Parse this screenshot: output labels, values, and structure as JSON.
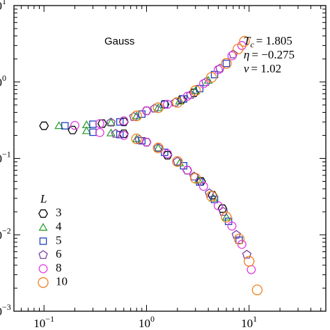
{
  "chart_data": {
    "type": "scatter",
    "log_x": true,
    "log_y": true,
    "xlim": [
      0.0509,
      56
    ],
    "ylim": [
      0.001,
      10
    ],
    "xticks": [
      {
        "value": 0.1,
        "label": "10",
        "exponent": "−1"
      },
      {
        "value": 1,
        "label": "10",
        "exponent": "0"
      },
      {
        "value": 10,
        "label": "10",
        "exponent": "1"
      }
    ],
    "yticks": [
      {
        "value": 0.001,
        "label": "10",
        "exponent": "−3"
      },
      {
        "value": 0.01,
        "label": "10",
        "exponent": "−2"
      },
      {
        "value": 0.1,
        "label": "10",
        "exponent": "−1"
      },
      {
        "value": 1,
        "label": "10",
        "exponent": "0"
      },
      {
        "value": 10,
        "label": "10",
        "exponent": "1"
      }
    ],
    "xminorticks": [
      0.06,
      0.07,
      0.08,
      0.09,
      0.2,
      0.3,
      0.4,
      0.5,
      0.6,
      0.7,
      0.8,
      0.9,
      2,
      3,
      4,
      5,
      6,
      7,
      8,
      9,
      20,
      30,
      40,
      50
    ],
    "yminorticks": [
      0.002,
      0.003,
      0.004,
      0.005,
      0.006,
      0.007,
      0.008,
      0.009,
      0.02,
      0.03,
      0.04,
      0.05,
      0.06,
      0.07,
      0.08,
      0.09,
      0.2,
      0.3,
      0.4,
      0.5,
      0.6,
      0.7,
      0.8,
      0.9,
      2,
      3,
      4,
      5,
      6,
      7,
      8,
      9
    ],
    "annotation": "Gauss",
    "parameters": [
      {
        "symbol": "T",
        "sub": "c",
        "text": "= 1.805"
      },
      {
        "symbol": "η",
        "text": "= −0.275"
      },
      {
        "symbol": "ν",
        "text": "= 1.02"
      }
    ],
    "legend_title": "L",
    "legend_position": "lower left",
    "series": [
      {
        "name": "3",
        "color": "#000000",
        "marker": "hexagon",
        "x": [
          0.1,
          0.37,
          0.6,
          1.0,
          1.5,
          2.2,
          2.9,
          0.19,
          0.6,
          1.0,
          1.6,
          2.5,
          3.4,
          4.4,
          5.5
        ],
        "values": [
          0.267,
          0.285,
          0.3,
          0.42,
          0.51,
          0.59,
          0.72,
          0.235,
          0.21,
          0.163,
          0.11,
          0.07,
          0.05,
          0.033,
          0.022
        ]
      },
      {
        "name": "4",
        "color": "#2ca02c",
        "marker": "triangle",
        "x": [
          0.14,
          0.26,
          0.45,
          0.8,
          1.3,
          2.1,
          3.0,
          4.0,
          0.26,
          0.45,
          0.8,
          1.3,
          2.1,
          3.2,
          4.5,
          6.0
        ],
        "values": [
          0.268,
          0.275,
          0.295,
          0.36,
          0.46,
          0.56,
          0.77,
          1.05,
          0.23,
          0.215,
          0.18,
          0.137,
          0.087,
          0.052,
          0.03,
          0.017
        ]
      },
      {
        "name": "5",
        "color": "#1f3fbf",
        "marker": "square",
        "x": [
          0.16,
          0.3,
          0.55,
          0.9,
          1.5,
          2.3,
          3.3,
          4.6,
          6.0,
          0.3,
          0.55,
          0.9,
          1.5,
          2.3,
          3.3,
          4.6,
          6.3,
          8.0
        ],
        "values": [
          0.267,
          0.28,
          0.3,
          0.38,
          0.51,
          0.6,
          0.82,
          1.25,
          1.75,
          0.22,
          0.205,
          0.17,
          0.12,
          0.08,
          0.049,
          0.029,
          0.015,
          0.0085
        ]
      },
      {
        "name": "6",
        "color": "#7b3fa0",
        "marker": "pentagon",
        "x": [
          0.45,
          0.75,
          1.2,
          1.9,
          2.7,
          3.8,
          5.2,
          7.0,
          0.5,
          0.85,
          1.3,
          2.0,
          2.9,
          4.1,
          5.6,
          7.5,
          9.5
        ],
        "values": [
          0.295,
          0.35,
          0.45,
          0.54,
          0.68,
          1.0,
          1.5,
          2.3,
          0.21,
          0.175,
          0.137,
          0.091,
          0.058,
          0.035,
          0.02,
          0.01,
          0.0055
        ]
      },
      {
        "name": "8",
        "color": "#e040e0",
        "marker": "circle",
        "x": [
          0.2,
          0.35,
          0.6,
          1.0,
          1.6,
          2.5,
          3.6,
          5.0,
          6.8,
          8.5,
          0.35,
          0.6,
          1.0,
          1.6,
          2.5,
          3.6,
          5.0,
          6.8,
          8.5,
          10.5
        ],
        "values": [
          0.27,
          0.285,
          0.31,
          0.42,
          0.51,
          0.65,
          0.95,
          1.45,
          2.2,
          3.0,
          0.218,
          0.2,
          0.163,
          0.115,
          0.07,
          0.043,
          0.024,
          0.013,
          0.0075,
          0.0035
        ]
      },
      {
        "name": "10",
        "color": "#f08020",
        "marker": "big-circle",
        "x": [
          0.8,
          1.3,
          2.0,
          3.0,
          4.3,
          6.0,
          7.8,
          9.0,
          0.8,
          1.3,
          2.0,
          3.0,
          4.3,
          6.0,
          8.0,
          10.0,
          12.0
        ],
        "values": [
          0.36,
          0.46,
          0.54,
          0.77,
          1.15,
          1.75,
          2.7,
          3.4,
          0.18,
          0.137,
          0.091,
          0.055,
          0.032,
          0.017,
          0.0088,
          0.0045,
          0.0019
        ]
      }
    ]
  }
}
